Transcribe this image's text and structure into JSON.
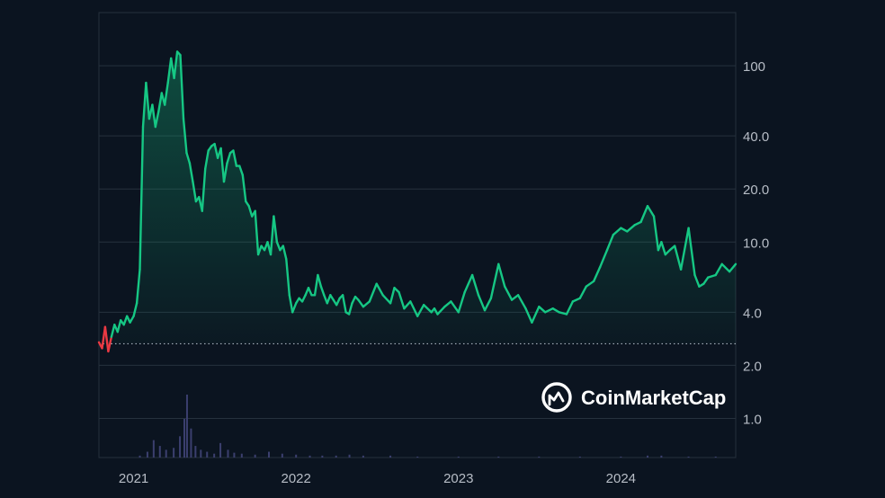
{
  "brand": {
    "name": "CoinMarketCap",
    "logo_icon": "coinmarketcap-logo-icon"
  },
  "colors": {
    "background": "#0b1420",
    "grid": "#26313d",
    "line_up": "#16c784",
    "line_down": "#ea3943",
    "baseline": "#a6b0bc",
    "volume": "#3b3f6e",
    "axis_text": "#b7bdc6"
  },
  "chart_data": {
    "type": "area",
    "y_scale": "log",
    "ylim": [
      0.6,
      200
    ],
    "y_ticks": [
      {
        "value": 100,
        "label": "100"
      },
      {
        "value": 40,
        "label": "40.0"
      },
      {
        "value": 20,
        "label": "20.0"
      },
      {
        "value": 10,
        "label": "10.0"
      },
      {
        "value": 4,
        "label": "4.0"
      },
      {
        "value": 2,
        "label": "2.0"
      },
      {
        "value": 1,
        "label": "1.0"
      }
    ],
    "x_ticks": [
      "2021",
      "2022",
      "2023",
      "2024"
    ],
    "xlim": [
      "2020-10-15",
      "2024-09-15"
    ],
    "baseline_value": 2.65,
    "grid": true,
    "series": [
      {
        "x": [
          "2020-10-15",
          "2020-10-22",
          "2020-10-29",
          "2020-11-05",
          "2020-11-12",
          "2020-11-19",
          "2020-11-26",
          "2020-12-03",
          "2020-12-10",
          "2020-12-17",
          "2020-12-24",
          "2021-01-01",
          "2021-01-08",
          "2021-01-15",
          "2021-01-22",
          "2021-01-29",
          "2021-02-05",
          "2021-02-12",
          "2021-02-19",
          "2021-02-26",
          "2021-03-05",
          "2021-03-12",
          "2021-03-19",
          "2021-03-26",
          "2021-04-02",
          "2021-04-09",
          "2021-04-16",
          "2021-04-23",
          "2021-04-30",
          "2021-05-07",
          "2021-05-14",
          "2021-05-21",
          "2021-05-28",
          "2021-06-04",
          "2021-06-11",
          "2021-06-18",
          "2021-06-25",
          "2021-07-02",
          "2021-07-09",
          "2021-07-16",
          "2021-07-23",
          "2021-07-30",
          "2021-08-06",
          "2021-08-13",
          "2021-08-20",
          "2021-08-27",
          "2021-09-03",
          "2021-09-10",
          "2021-09-17",
          "2021-09-24",
          "2021-10-01",
          "2021-10-08",
          "2021-10-15",
          "2021-10-22",
          "2021-10-29",
          "2021-11-05",
          "2021-11-12",
          "2021-11-19",
          "2021-11-26",
          "2021-12-03",
          "2021-12-10",
          "2021-12-17",
          "2021-12-24",
          "2022-01-01",
          "2022-01-08",
          "2022-01-15",
          "2022-01-22",
          "2022-01-29",
          "2022-02-05",
          "2022-02-12",
          "2022-02-19",
          "2022-02-26",
          "2022-03-05",
          "2022-03-12",
          "2022-03-19",
          "2022-03-26",
          "2022-04-02",
          "2022-04-09",
          "2022-04-16",
          "2022-04-23",
          "2022-04-30",
          "2022-05-07",
          "2022-05-14",
          "2022-05-21",
          "2022-06-01",
          "2022-06-15",
          "2022-07-01",
          "2022-07-15",
          "2022-08-01",
          "2022-08-10",
          "2022-08-20",
          "2022-09-01",
          "2022-09-15",
          "2022-10-01",
          "2022-10-15",
          "2022-11-01",
          "2022-11-08",
          "2022-11-15",
          "2022-12-01",
          "2022-12-15",
          "2023-01-01",
          "2023-01-15",
          "2023-02-01",
          "2023-02-15",
          "2023-03-01",
          "2023-03-15",
          "2023-04-01",
          "2023-04-15",
          "2023-05-01",
          "2023-05-15",
          "2023-06-01",
          "2023-06-15",
          "2023-07-01",
          "2023-07-15",
          "2023-08-01",
          "2023-08-15",
          "2023-09-01",
          "2023-09-15",
          "2023-10-01",
          "2023-10-15",
          "2023-11-01",
          "2023-11-15",
          "2023-12-01",
          "2023-12-15",
          "2024-01-01",
          "2024-01-15",
          "2024-02-01",
          "2024-02-15",
          "2024-03-01",
          "2024-03-15",
          "2024-03-25",
          "2024-04-01",
          "2024-04-10",
          "2024-04-20",
          "2024-05-01",
          "2024-05-15",
          "2024-06-01",
          "2024-06-15",
          "2024-06-25",
          "2024-07-05",
          "2024-07-15",
          "2024-08-01",
          "2024-08-15",
          "2024-09-01",
          "2024-09-15"
        ],
        "y": [
          2.7,
          2.5,
          3.3,
          2.4,
          2.9,
          3.4,
          3.1,
          3.6,
          3.4,
          3.8,
          3.5,
          3.8,
          4.5,
          7.0,
          45.0,
          80.0,
          50.0,
          60.0,
          45.0,
          55.0,
          70.0,
          60.0,
          80.0,
          110.0,
          85.0,
          120.0,
          115.0,
          50.0,
          32.0,
          28.0,
          22.0,
          17.0,
          18.0,
          15.0,
          26.0,
          33.0,
          35.0,
          36.0,
          30.0,
          34.0,
          22.0,
          28.0,
          32.0,
          33.0,
          27.0,
          27.0,
          24.0,
          17.0,
          16.0,
          14.0,
          15.0,
          8.5,
          9.5,
          9.0,
          10.0,
          8.5,
          14.0,
          10.0,
          9.0,
          9.5,
          8.0,
          5.0,
          4.0,
          4.5,
          4.8,
          4.6,
          5.0,
          5.5,
          5.0,
          5.0,
          6.5,
          5.6,
          5.0,
          4.5,
          5.0,
          4.7,
          4.4,
          4.8,
          5.0,
          4.0,
          3.9,
          4.5,
          4.9,
          4.7,
          4.3,
          4.6,
          5.8,
          5.0,
          4.5,
          5.5,
          5.2,
          4.2,
          4.6,
          3.8,
          4.4,
          4.0,
          4.2,
          3.9,
          4.3,
          4.6,
          4.0,
          5.2,
          6.5,
          5.0,
          4.1,
          4.8,
          7.5,
          5.6,
          4.7,
          5.0,
          4.2,
          3.5,
          4.3,
          4.0,
          4.2,
          4.0,
          3.9,
          4.6,
          4.8,
          5.6,
          6.0,
          7.2,
          9.0,
          11.0,
          12.0,
          11.5,
          12.5,
          13.0,
          16.0,
          14.0,
          9.0,
          10.0,
          8.5,
          9.0,
          9.5,
          7.0,
          12.0,
          6.5,
          5.6,
          5.8,
          6.3,
          6.5,
          7.5,
          6.8,
          7.5
        ]
      }
    ],
    "volume": {
      "x": [
        "2021-01-15",
        "2021-02-01",
        "2021-02-15",
        "2021-03-01",
        "2021-03-15",
        "2021-04-01",
        "2021-04-15",
        "2021-04-25",
        "2021-05-01",
        "2021-05-10",
        "2021-05-20",
        "2021-06-01",
        "2021-06-15",
        "2021-07-01",
        "2021-07-15",
        "2021-08-01",
        "2021-08-15",
        "2021-09-01",
        "2021-10-01",
        "2021-11-01",
        "2021-12-01",
        "2022-01-01",
        "2022-02-01",
        "2022-03-01",
        "2022-04-01",
        "2022-05-01",
        "2022-06-01",
        "2022-08-01",
        "2022-10-01",
        "2023-01-01",
        "2023-04-01",
        "2023-07-01",
        "2023-10-01",
        "2024-01-01",
        "2024-03-01",
        "2024-04-01",
        "2024-06-01",
        "2024-08-01"
      ],
      "values": [
        2,
        6,
        18,
        12,
        8,
        10,
        22,
        40,
        65,
        30,
        12,
        8,
        6,
        4,
        15,
        8,
        5,
        4,
        3,
        6,
        4,
        3,
        2,
        2,
        2,
        3,
        2,
        2,
        1,
        1,
        1,
        1,
        1,
        1,
        2,
        2,
        1,
        1
      ]
    }
  }
}
